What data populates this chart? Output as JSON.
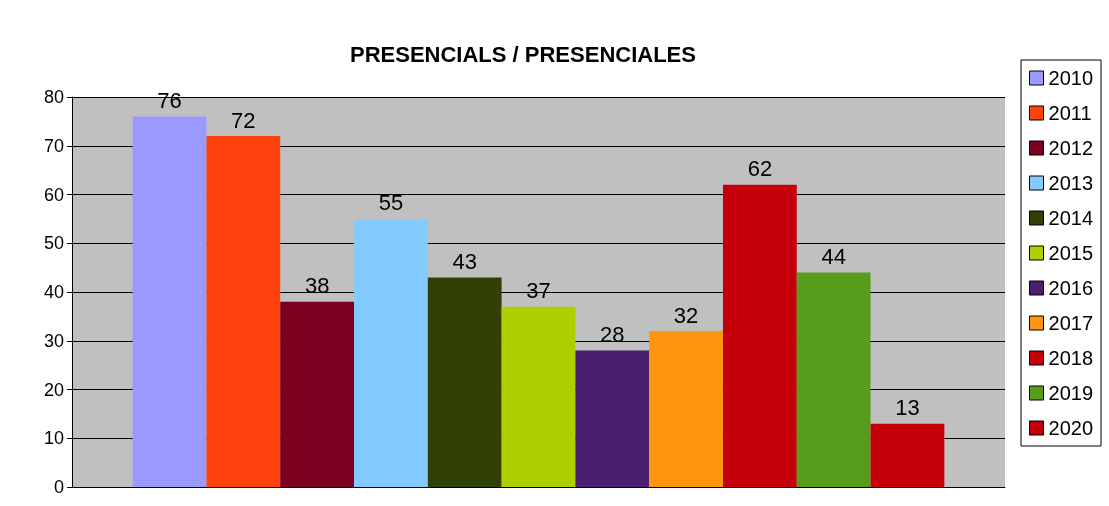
{
  "chart_data": {
    "type": "bar",
    "title": "PRESENCIALS / PRESENCIALES",
    "categories": [
      null
    ],
    "series": [
      {
        "name": "2010",
        "color": "#9999ff",
        "values": [
          76
        ]
      },
      {
        "name": "2011",
        "color": "#ff420e",
        "values": [
          72
        ]
      },
      {
        "name": "2012",
        "color": "#7e0021",
        "values": [
          38
        ]
      },
      {
        "name": "2013",
        "color": "#83caff",
        "values": [
          55
        ]
      },
      {
        "name": "2014",
        "color": "#314004",
        "values": [
          43
        ]
      },
      {
        "name": "2015",
        "color": "#aecf00",
        "values": [
          37
        ]
      },
      {
        "name": "2016",
        "color": "#4b1f6f",
        "values": [
          28
        ]
      },
      {
        "name": "2017",
        "color": "#ff950e",
        "values": [
          32
        ]
      },
      {
        "name": "2018",
        "color": "#c5000b",
        "values": [
          62
        ]
      },
      {
        "name": "2019",
        "color": "#579d1c",
        "values": [
          44
        ]
      },
      {
        "name": "2020",
        "color": "#c5000b",
        "values": [
          13
        ]
      }
    ],
    "ylim": [
      0,
      80
    ],
    "yticks": [
      0,
      10,
      20,
      30,
      40,
      50,
      60,
      70,
      80
    ],
    "grid": "y",
    "legend": "right",
    "data_labels": true
  }
}
